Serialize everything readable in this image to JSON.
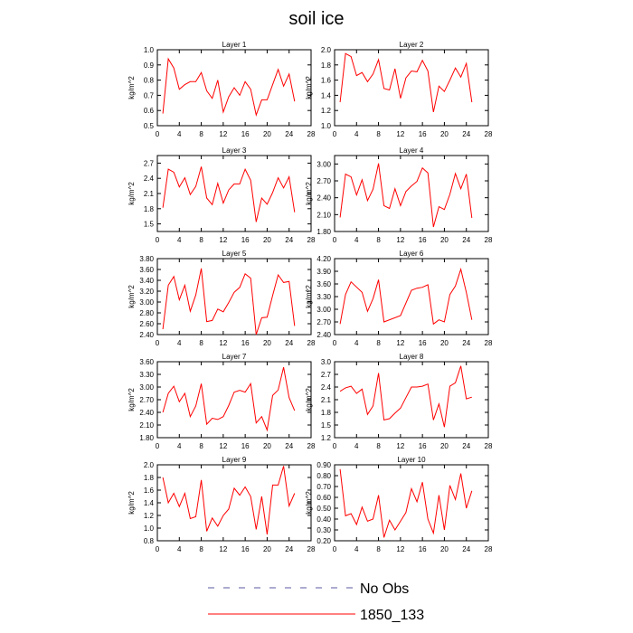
{
  "figure": {
    "title": "soil ice"
  },
  "colors": {
    "model_line": "#ff0000",
    "obs_line": "#5a5aa0",
    "axis": "#000000"
  },
  "legend": {
    "items": [
      {
        "label": "No Obs",
        "style": "dashed",
        "color": "#5a5aa0"
      },
      {
        "label": "1850_133",
        "style": "solid",
        "color": "#ff0000"
      }
    ]
  },
  "chart_data": [
    {
      "type": "line",
      "title": "Layer 1",
      "ylabel": "kg/m^2",
      "xlim": [
        0,
        28
      ],
      "xticks": [
        0,
        4,
        8,
        12,
        16,
        20,
        24,
        28
      ],
      "ylim": [
        0.5,
        1.0
      ],
      "yticks": [
        "0.5",
        "0.6",
        "0.7",
        "0.8",
        "0.9",
        "1.0"
      ],
      "series": [
        {
          "name": "1850_133",
          "x": [
            1,
            2,
            3,
            4,
            5,
            6,
            7,
            8,
            9,
            10,
            11,
            12,
            13,
            14,
            15,
            16,
            17,
            18,
            19,
            20,
            21,
            22,
            23,
            24,
            25
          ],
          "y": [
            0.58,
            0.94,
            0.88,
            0.74,
            0.77,
            0.79,
            0.79,
            0.85,
            0.73,
            0.68,
            0.8,
            0.59,
            0.69,
            0.75,
            0.7,
            0.79,
            0.74,
            0.57,
            0.67,
            0.67,
            0.77,
            0.87,
            0.76,
            0.84,
            0.66
          ]
        }
      ]
    },
    {
      "type": "line",
      "title": "Layer 2",
      "ylabel": "kg/m^2",
      "xlim": [
        0,
        28
      ],
      "xticks": [
        0,
        4,
        8,
        12,
        16,
        20,
        24,
        28
      ],
      "ylim": [
        1.0,
        2.0
      ],
      "yticks": [
        "1.0",
        "1.2",
        "1.4",
        "1.6",
        "1.8",
        "2.0"
      ],
      "series": [
        {
          "name": "1850_133",
          "x": [
            1,
            2,
            3,
            4,
            5,
            6,
            7,
            8,
            9,
            10,
            11,
            12,
            13,
            14,
            15,
            16,
            17,
            18,
            19,
            20,
            21,
            22,
            23,
            24,
            25
          ],
          "y": [
            1.31,
            1.95,
            1.91,
            1.66,
            1.7,
            1.58,
            1.68,
            1.87,
            1.49,
            1.47,
            1.75,
            1.36,
            1.63,
            1.72,
            1.71,
            1.86,
            1.72,
            1.18,
            1.52,
            1.45,
            1.6,
            1.76,
            1.64,
            1.82,
            1.31
          ]
        }
      ]
    },
    {
      "type": "line",
      "title": "Layer 3",
      "ylabel": "kg/m^2",
      "xlim": [
        0,
        28
      ],
      "xticks": [
        0,
        4,
        8,
        12,
        16,
        20,
        24,
        28
      ],
      "ylim": [
        1.35,
        2.85
      ],
      "yticks": [
        "1.5",
        "1.8",
        "2.1",
        "2.4",
        "2.7"
      ],
      "series": [
        {
          "name": "1850_133",
          "x": [
            1,
            2,
            3,
            4,
            5,
            6,
            7,
            8,
            9,
            10,
            11,
            12,
            13,
            14,
            15,
            16,
            17,
            18,
            19,
            20,
            21,
            22,
            23,
            24,
            25
          ],
          "y": [
            1.82,
            2.58,
            2.52,
            2.23,
            2.41,
            2.08,
            2.24,
            2.63,
            2.01,
            1.88,
            2.3,
            1.91,
            2.17,
            2.29,
            2.29,
            2.58,
            2.36,
            1.54,
            2.01,
            1.89,
            2.12,
            2.41,
            2.21,
            2.43,
            1.73
          ]
        }
      ]
    },
    {
      "type": "line",
      "title": "Layer 4",
      "ylabel": "kg/m^2",
      "xlim": [
        0,
        28
      ],
      "xticks": [
        0,
        4,
        8,
        12,
        16,
        20,
        24,
        28
      ],
      "ylim": [
        1.8,
        3.15
      ],
      "yticks": [
        "1.80",
        "2.10",
        "2.40",
        "2.70",
        "3.00"
      ],
      "series": [
        {
          "name": "1850_133",
          "x": [
            1,
            2,
            3,
            4,
            5,
            6,
            7,
            8,
            9,
            10,
            11,
            12,
            13,
            14,
            15,
            16,
            17,
            18,
            19,
            20,
            21,
            22,
            23,
            24,
            25
          ],
          "y": [
            2.05,
            2.82,
            2.77,
            2.45,
            2.72,
            2.35,
            2.55,
            3.01,
            2.26,
            2.21,
            2.56,
            2.26,
            2.51,
            2.61,
            2.69,
            2.93,
            2.84,
            1.88,
            2.24,
            2.19,
            2.46,
            2.83,
            2.56,
            2.82,
            2.04
          ]
        }
      ]
    },
    {
      "type": "line",
      "title": "Layer 5",
      "ylabel": "kg/m^2",
      "xlim": [
        0,
        28
      ],
      "xticks": [
        0,
        4,
        8,
        12,
        16,
        20,
        24,
        28
      ],
      "ylim": [
        2.4,
        3.8
      ],
      "yticks": [
        "2.40",
        "2.60",
        "2.80",
        "3.00",
        "3.20",
        "3.40",
        "3.60",
        "3.80"
      ],
      "series": [
        {
          "name": "1850_133",
          "x": [
            1,
            2,
            3,
            4,
            5,
            6,
            7,
            8,
            9,
            10,
            11,
            12,
            13,
            14,
            15,
            16,
            17,
            18,
            19,
            20,
            21,
            22,
            23,
            24,
            25
          ],
          "y": [
            2.5,
            3.31,
            3.47,
            3.04,
            3.31,
            2.83,
            3.13,
            3.62,
            2.64,
            2.66,
            2.87,
            2.82,
            2.99,
            3.18,
            3.27,
            3.52,
            3.44,
            2.4,
            2.71,
            2.72,
            3.12,
            3.5,
            3.36,
            3.38,
            2.56
          ]
        }
      ]
    },
    {
      "type": "line",
      "title": "Layer 6",
      "ylabel": "kg/m^2",
      "xlim": [
        0,
        28
      ],
      "xticks": [
        0,
        4,
        8,
        12,
        16,
        20,
        24,
        28
      ],
      "ylim": [
        2.4,
        4.2
      ],
      "yticks": [
        "2.40",
        "2.70",
        "3.00",
        "3.30",
        "3.60",
        "3.90",
        "4.20"
      ],
      "series": [
        {
          "name": "1850_133",
          "x": [
            1,
            2,
            3,
            5,
            6,
            7,
            8,
            9,
            12,
            14,
            15,
            16,
            17,
            18,
            19,
            20,
            21,
            22,
            23,
            24,
            25
          ],
          "y": [
            2.65,
            3.35,
            3.65,
            3.4,
            2.95,
            3.25,
            3.7,
            2.7,
            2.85,
            3.45,
            3.5,
            3.52,
            3.58,
            2.65,
            2.75,
            2.7,
            3.35,
            3.55,
            3.95,
            3.4,
            2.75
          ]
        }
      ]
    },
    {
      "type": "line",
      "title": "Layer 7",
      "ylabel": "kg/m^2",
      "xlim": [
        0,
        28
      ],
      "xticks": [
        0,
        4,
        8,
        12,
        16,
        20,
        24,
        28
      ],
      "ylim": [
        1.8,
        3.6
      ],
      "yticks": [
        "1.80",
        "2.10",
        "2.40",
        "2.70",
        "3.00",
        "3.30",
        "3.60"
      ],
      "series": [
        {
          "name": "1850_133",
          "x": [
            1,
            2,
            3,
            4,
            5,
            6,
            7,
            8,
            9,
            10,
            11,
            12,
            13,
            14,
            15,
            16,
            17,
            18,
            19,
            20,
            21,
            22,
            23,
            24,
            25
          ],
          "y": [
            2.4,
            2.85,
            3.02,
            2.65,
            2.85,
            2.3,
            2.55,
            3.08,
            2.12,
            2.26,
            2.23,
            2.3,
            2.56,
            2.88,
            2.92,
            2.88,
            3.08,
            2.15,
            2.3,
            1.98,
            2.8,
            2.93,
            3.47,
            2.75,
            2.44
          ]
        }
      ]
    },
    {
      "type": "line",
      "title": "Layer 8",
      "ylabel": "kg/m^2",
      "xlim": [
        0,
        28
      ],
      "xticks": [
        0,
        4,
        8,
        12,
        16,
        20,
        24,
        28
      ],
      "ylim": [
        1.2,
        3.0
      ],
      "yticks": [
        "1.2",
        "1.5",
        "1.8",
        "2.1",
        "2.4",
        "2.7",
        "3.0"
      ],
      "series": [
        {
          "name": "1850_133",
          "x": [
            1,
            2,
            3,
            4,
            5,
            6,
            7,
            8,
            9,
            10,
            11,
            12,
            13,
            14,
            15,
            16,
            17,
            18,
            19,
            20,
            21,
            22,
            23,
            24,
            25
          ],
          "y": [
            2.3,
            2.38,
            2.42,
            2.25,
            2.35,
            1.75,
            1.95,
            2.73,
            1.62,
            1.65,
            1.78,
            1.9,
            2.15,
            2.4,
            2.4,
            2.42,
            2.47,
            1.62,
            2.0,
            1.45,
            2.42,
            2.5,
            2.9,
            2.12,
            2.16
          ]
        }
      ]
    },
    {
      "type": "line",
      "title": "Layer 9",
      "ylabel": "kg/m^2",
      "xlim": [
        0,
        28
      ],
      "xticks": [
        0,
        4,
        8,
        12,
        16,
        20,
        24,
        28
      ],
      "ylim": [
        0.8,
        2.0
      ],
      "yticks": [
        "0.8",
        "1.0",
        "1.2",
        "1.4",
        "1.6",
        "1.8",
        "2.0"
      ],
      "series": [
        {
          "name": "1850_133",
          "x": [
            1,
            2,
            3,
            4,
            5,
            6,
            7,
            8,
            9,
            10,
            11,
            12,
            13,
            14,
            15,
            16,
            17,
            18,
            19,
            20,
            21,
            22,
            23,
            24,
            25
          ],
          "y": [
            1.8,
            1.4,
            1.55,
            1.34,
            1.55,
            1.15,
            1.18,
            1.76,
            0.95,
            1.16,
            1.03,
            1.2,
            1.3,
            1.63,
            1.52,
            1.65,
            1.5,
            0.98,
            1.5,
            0.9,
            1.68,
            1.68,
            1.98,
            1.35,
            1.55
          ]
        }
      ]
    },
    {
      "type": "line",
      "title": "Layer 10",
      "ylabel": "kg/m^2",
      "xlim": [
        0,
        28
      ],
      "xticks": [
        0,
        4,
        8,
        12,
        16,
        20,
        24,
        28
      ],
      "ylim": [
        0.2,
        0.9
      ],
      "yticks": [
        "0.20",
        "0.30",
        "0.40",
        "0.50",
        "0.60",
        "0.70",
        "0.80",
        "0.90"
      ],
      "series": [
        {
          "name": "1850_133",
          "x": [
            1,
            2,
            3,
            4,
            5,
            6,
            7,
            8,
            9,
            10,
            11,
            12,
            13,
            14,
            15,
            16,
            17,
            18,
            19,
            20,
            21,
            22,
            23,
            24,
            25
          ],
          "y": [
            0.86,
            0.43,
            0.45,
            0.35,
            0.51,
            0.38,
            0.4,
            0.62,
            0.23,
            0.39,
            0.3,
            0.38,
            0.46,
            0.68,
            0.56,
            0.74,
            0.4,
            0.27,
            0.62,
            0.3,
            0.71,
            0.58,
            0.82,
            0.5,
            0.66
          ]
        }
      ]
    }
  ]
}
